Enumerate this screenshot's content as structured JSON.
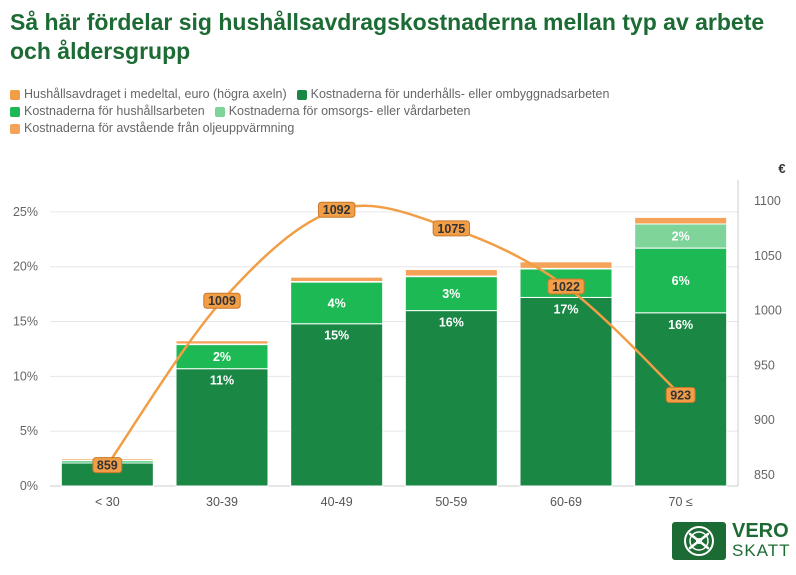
{
  "title": "Så här fördelar sig hushållsavdragskostnaderna mellan typ av arbete och åldersgrupp",
  "colors": {
    "avg": "#f19e47",
    "renovation": "#1a8745",
    "household": "#1db954",
    "care": "#7fd49a",
    "oil": "#f4a358",
    "title": "#1d6b34"
  },
  "legend": [
    {
      "label": "Hushållsavdraget i medeltal, euro (högra axeln)",
      "color": "#f19e47"
    },
    {
      "label": "Kostnaderna för underhålls- eller ombyggnadsarbeten",
      "color": "#1a8745"
    },
    {
      "label": "Kostnaderna för hushållsarbeten",
      "color": "#1db954"
    },
    {
      "label": "Kostnaderna för omsorgs- eller vårdarbeten",
      "color": "#7fd49a"
    },
    {
      "label": "Kostnaderna för avstående från oljeuppvärmning",
      "color": "#f4a358"
    }
  ],
  "chart_data": {
    "type": "bar",
    "stacked": true,
    "categories": [
      "< 30",
      "30-39",
      "40-49",
      "50-59",
      "60-69",
      "70 ≤"
    ],
    "series": [
      {
        "name": "Kostnaderna för underhålls- eller ombyggnadsarbeten",
        "values": [
          2.1,
          10.7,
          14.8,
          16.0,
          17.2,
          15.8
        ],
        "labels": [
          "",
          "11%",
          "15%",
          "16%",
          "17%",
          "16%"
        ]
      },
      {
        "name": "Kostnaderna för hushållsarbeten",
        "values": [
          0.2,
          2.2,
          3.8,
          3.1,
          2.6,
          5.9
        ],
        "labels": [
          "",
          "2%",
          "4%",
          "3%",
          "",
          "6%"
        ]
      },
      {
        "name": "Kostnaderna för omsorgs- eller vårdarbeten",
        "values": [
          0.05,
          0.05,
          0.05,
          0.05,
          0.05,
          2.2
        ],
        "labels": [
          "",
          "",
          "",
          "",
          "",
          "2%"
        ]
      },
      {
        "name": "Kostnaderna för avstående från oljeuppvärmning",
        "values": [
          0.15,
          0.3,
          0.4,
          0.6,
          0.6,
          0.6
        ],
        "labels": [
          "",
          "",
          "",
          "",
          "",
          ""
        ]
      }
    ],
    "line": {
      "name": "Hushållsavdraget i medeltal, euro (högra axeln)",
      "values": [
        859,
        1009,
        1092,
        1075,
        1022,
        923
      ],
      "labels": [
        "859",
        "1009",
        "1092",
        "1075",
        "1022",
        "923"
      ]
    },
    "y_left": {
      "min": 0,
      "max": 27,
      "ticks": [
        0,
        5,
        10,
        15,
        20,
        25
      ],
      "tick_labels": [
        "0%",
        "5%",
        "10%",
        "15%",
        "20%",
        "25%"
      ]
    },
    "y_right": {
      "min": 840,
      "max": 1110,
      "ticks": [
        850,
        900,
        950,
        1000,
        1050,
        1100
      ],
      "tick_labels": [
        "850",
        "900",
        "950",
        "1000",
        "1050",
        "1100"
      ],
      "unit": "€"
    },
    "grid": true,
    "legend_position": "top-left"
  },
  "logo": {
    "line1": "VERO",
    "line2": "SKATT"
  }
}
